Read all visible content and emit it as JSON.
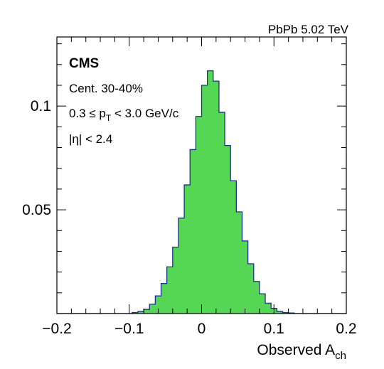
{
  "chart_data": {
    "type": "histogram",
    "title": "",
    "top_right_label": "PbPb 5.02 TeV",
    "xlabel": {
      "main": "Observed A",
      "sub": "ch"
    },
    "ylabel": "",
    "xlim": [
      -0.2,
      0.2
    ],
    "ylim": [
      0,
      0.1333
    ],
    "x_ticks": [
      -0.2,
      -0.1,
      0,
      0.1,
      0.2
    ],
    "x_tick_labels": [
      "−0.2",
      "−0.1",
      "0",
      "0.1",
      "0.2"
    ],
    "y_ticks": [
      0.05,
      0.1
    ],
    "y_tick_labels": [
      "0.05",
      "0.1"
    ],
    "annotations": {
      "experiment": "CMS",
      "centrality": "Cent. 30-40%",
      "pt_range": {
        "pre": "0.3 ≤ p",
        "sub": "T",
        "post": " < 3.0 GeV/c"
      },
      "eta_range": "|η| < 2.4"
    },
    "bin_width": 0.008,
    "bin_edges_start": -0.2,
    "values": [
      0,
      0,
      0,
      0,
      0,
      0,
      0,
      0,
      0,
      0,
      0,
      0,
      0,
      0.0005,
      0.001,
      0.002,
      0.0045,
      0.0085,
      0.0145,
      0.0225,
      0.032,
      0.046,
      0.062,
      0.079,
      0.095,
      0.11,
      0.117,
      0.112,
      0.097,
      0.081,
      0.064,
      0.049,
      0.035,
      0.024,
      0.0155,
      0.0095,
      0.005,
      0.0025,
      0.001,
      0.0005,
      0.0003,
      0,
      0,
      0,
      0,
      0,
      0,
      0,
      0,
      0
    ],
    "fill_color": "#55d655",
    "line_color": "#1f2f8c"
  }
}
